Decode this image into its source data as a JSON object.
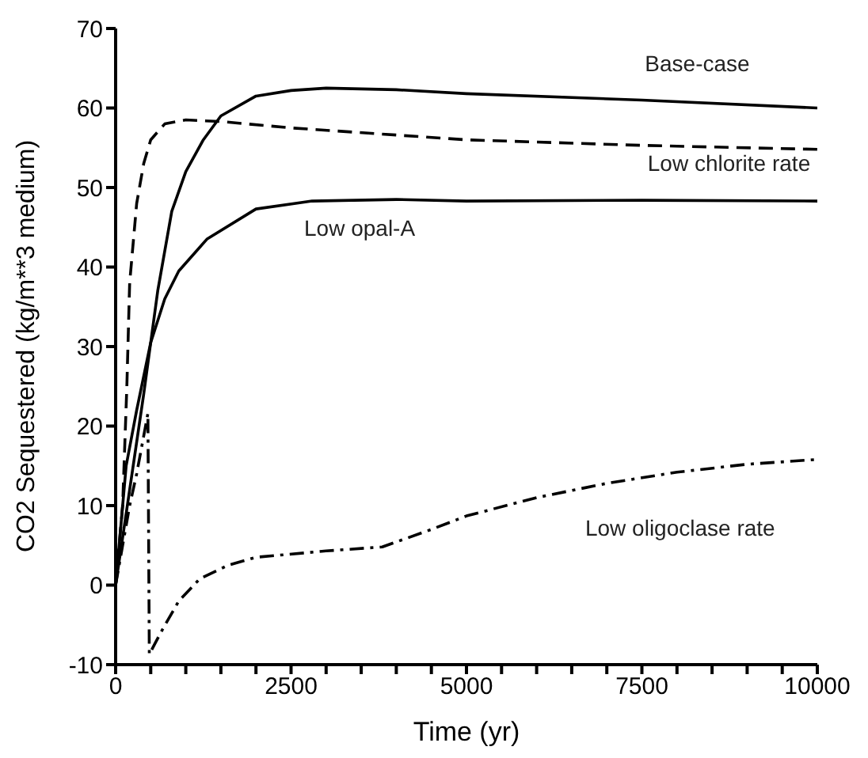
{
  "chart_data": {
    "type": "line",
    "xlabel": "Time (yr)",
    "ylabel": "CO2 Sequestered (kg/m**3 medium)",
    "xlim": [
      0,
      10000
    ],
    "ylim": [
      -10,
      70
    ],
    "xticks": [
      0,
      {
        "value": 500,
        "label": null
      },
      {
        "value": 1000,
        "label": null
      },
      {
        "value": 1500,
        "label": null
      },
      {
        "value": 2000,
        "label": null
      },
      2500,
      {
        "value": 3000,
        "label": null
      },
      {
        "value": 3500,
        "label": null
      },
      {
        "value": 4000,
        "label": null
      },
      {
        "value": 4500,
        "label": null
      },
      5000,
      {
        "value": 5500,
        "label": null
      },
      {
        "value": 6000,
        "label": null
      },
      {
        "value": 6500,
        "label": null
      },
      {
        "value": 7000,
        "label": null
      },
      7500,
      {
        "value": 8000,
        "label": null
      },
      {
        "value": 8500,
        "label": null
      },
      {
        "value": 9000,
        "label": null
      },
      {
        "value": 9500,
        "label": null
      },
      10000
    ],
    "yticks": [
      -10,
      0,
      10,
      20,
      30,
      40,
      50,
      60,
      70
    ],
    "marker": "none",
    "series": [
      {
        "name": "Base-case",
        "color": "#000000",
        "line_style": "solid",
        "x": [
          0,
          200,
          400,
          600,
          800,
          1000,
          1250,
          1500,
          2000,
          2500,
          3000,
          4000,
          5000,
          7500,
          10000
        ],
        "values": [
          0,
          12,
          24,
          37,
          47,
          52,
          56,
          59,
          61.5,
          62.2,
          62.5,
          62.3,
          61.8,
          61,
          60
        ]
      },
      {
        "name": "Low chlorite rate",
        "color": "#000000",
        "line_style": "dashed",
        "x": [
          0,
          100,
          160,
          200,
          300,
          400,
          500,
          700,
          1000,
          1500,
          2500,
          5000,
          7500,
          10000
        ],
        "values": [
          0,
          10,
          25,
          38,
          48,
          53,
          56,
          58,
          58.5,
          58.3,
          57.5,
          56,
          55.3,
          54.8
        ]
      },
      {
        "name": "Low opal-A",
        "color": "#000000",
        "line_style": "solid",
        "x": [
          0,
          150,
          300,
          500,
          700,
          900,
          1300,
          2000,
          2800,
          4000,
          5000,
          7500,
          10000
        ],
        "values": [
          0,
          15,
          22,
          30.5,
          36,
          39.5,
          43.5,
          47.3,
          48.3,
          48.5,
          48.3,
          48.4,
          48.3
        ]
      },
      {
        "name": "Low oligoclase rate",
        "color": "#000000",
        "line_style": "dashdot",
        "x": [
          0,
          100,
          200,
          300,
          460,
          480,
          660,
          900,
          1200,
          1600,
          2000,
          3000,
          3800,
          4500,
          5000,
          6000,
          7000,
          8000,
          9000,
          10000
        ],
        "values": [
          0,
          5,
          10,
          14,
          21.6,
          -8.7,
          -5.7,
          -2,
          0.8,
          2.5,
          3.5,
          4.3,
          4.8,
          7,
          8.7,
          11,
          12.8,
          14.2,
          15.2,
          15.8
        ]
      }
    ]
  }
}
